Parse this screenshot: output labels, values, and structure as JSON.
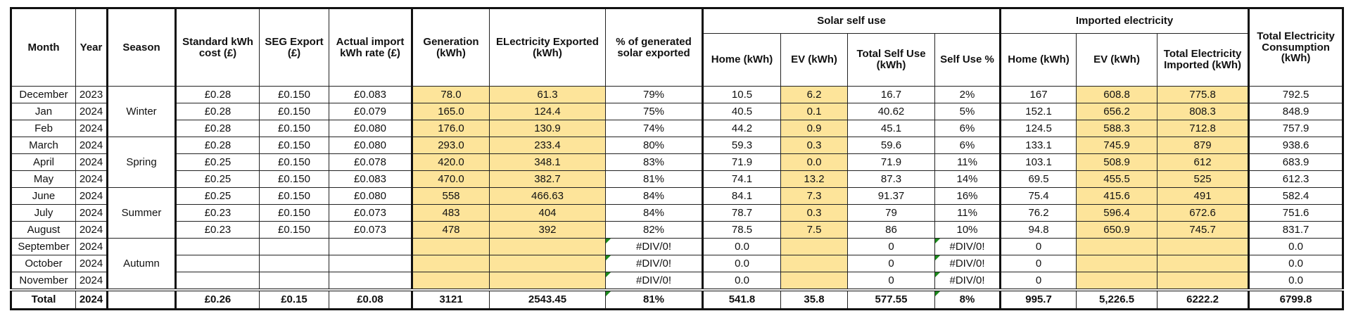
{
  "sheet": {
    "headers": {
      "month": "Month",
      "year": "Year",
      "season": "Season",
      "standard_cost": "Standard kWh cost (£)",
      "seg_export": "SEG Export (£)",
      "actual_import_rate": "Actual import kWh rate (£)",
      "generation": "Generation (kWh)",
      "exported": "ELectricity Exported (kWh)",
      "pct_exported": "% of generated solar exported",
      "solar_self_use_group": "Solar self use",
      "self_home": "Home (kWh)",
      "self_ev": "EV (kWh)",
      "self_total": "Total Self Use (kWh)",
      "self_pct": "Self Use %",
      "imported_group": "Imported electricity",
      "imp_home": "Home (kWh)",
      "imp_ev": "EV (kWh)",
      "imp_total": "Total Electricity Imported (kWh)",
      "total_consumption": "Total Electricity Consumption (kWh)"
    },
    "seasons": [
      "Winter",
      "Spring",
      "Summer",
      "Autumn"
    ],
    "rows": [
      {
        "month": "December",
        "year": "2023",
        "std": "£0.28",
        "seg": "£0.150",
        "rate": "£0.083",
        "gen": "78.0",
        "exp": "61.3",
        "pct": "79%",
        "s_home": "10.5",
        "s_ev": "6.2",
        "s_total": "16.7",
        "s_pct": "2%",
        "i_home": "167",
        "i_ev": "608.8",
        "i_total": "775.8",
        "total": "792.5"
      },
      {
        "month": "Jan",
        "year": "2024",
        "std": "£0.28",
        "seg": "£0.150",
        "rate": "£0.079",
        "gen": "165.0",
        "exp": "124.4",
        "pct": "75%",
        "s_home": "40.5",
        "s_ev": "0.1",
        "s_total": "40.62",
        "s_pct": "5%",
        "i_home": "152.1",
        "i_ev": "656.2",
        "i_total": "808.3",
        "total": "848.9"
      },
      {
        "month": "Feb",
        "year": "2024",
        "std": "£0.28",
        "seg": "£0.150",
        "rate": "£0.080",
        "gen": "176.0",
        "exp": "130.9",
        "pct": "74%",
        "s_home": "44.2",
        "s_ev": "0.9",
        "s_total": "45.1",
        "s_pct": "6%",
        "i_home": "124.5",
        "i_ev": "588.3",
        "i_total": "712.8",
        "total": "757.9"
      },
      {
        "month": "March",
        "year": "2024",
        "std": "£0.28",
        "seg": "£0.150",
        "rate": "£0.080",
        "gen": "293.0",
        "exp": "233.4",
        "pct": "80%",
        "s_home": "59.3",
        "s_ev": "0.3",
        "s_total": "59.6",
        "s_pct": "6%",
        "i_home": "133.1",
        "i_ev": "745.9",
        "i_total": "879",
        "total": "938.6"
      },
      {
        "month": "April",
        "year": "2024",
        "std": "£0.25",
        "seg": "£0.150",
        "rate": "£0.078",
        "gen": "420.0",
        "exp": "348.1",
        "pct": "83%",
        "s_home": "71.9",
        "s_ev": "0.0",
        "s_total": "71.9",
        "s_pct": "11%",
        "i_home": "103.1",
        "i_ev": "508.9",
        "i_total": "612",
        "total": "683.9"
      },
      {
        "month": "May",
        "year": "2024",
        "std": "£0.25",
        "seg": "£0.150",
        "rate": "£0.083",
        "gen": "470.0",
        "exp": "382.7",
        "pct": "81%",
        "s_home": "74.1",
        "s_ev": "13.2",
        "s_total": "87.3",
        "s_pct": "14%",
        "i_home": "69.5",
        "i_ev": "455.5",
        "i_total": "525",
        "total": "612.3"
      },
      {
        "month": "June",
        "year": "2024",
        "std": "£0.25",
        "seg": "£0.150",
        "rate": "£0.080",
        "gen": "558",
        "exp": "466.63",
        "pct": "84%",
        "s_home": "84.1",
        "s_ev": "7.3",
        "s_total": "91.37",
        "s_pct": "16%",
        "i_home": "75.4",
        "i_ev": "415.6",
        "i_total": "491",
        "total": "582.4"
      },
      {
        "month": "July",
        "year": "2024",
        "std": "£0.23",
        "seg": "£0.150",
        "rate": "£0.073",
        "gen": "483",
        "exp": "404",
        "pct": "84%",
        "s_home": "78.7",
        "s_ev": "0.3",
        "s_total": "79",
        "s_pct": "11%",
        "i_home": "76.2",
        "i_ev": "596.4",
        "i_total": "672.6",
        "total": "751.6"
      },
      {
        "month": "August",
        "year": "2024",
        "std": "£0.23",
        "seg": "£0.150",
        "rate": "£0.073",
        "gen": "478",
        "exp": "392",
        "pct": "82%",
        "s_home": "78.5",
        "s_ev": "7.5",
        "s_total": "86",
        "s_pct": "10%",
        "i_home": "94.8",
        "i_ev": "650.9",
        "i_total": "745.7",
        "total": "831.7"
      },
      {
        "month": "September",
        "year": "2024",
        "std": "",
        "seg": "",
        "rate": "",
        "gen": "",
        "exp": "",
        "pct": "#DIV/0!",
        "s_home": "0.0",
        "s_ev": "",
        "s_total": "0",
        "s_pct": "#DIV/0!",
        "i_home": "0",
        "i_ev": "",
        "i_total": "",
        "total": "0.0"
      },
      {
        "month": "October",
        "year": "2024",
        "std": "",
        "seg": "",
        "rate": "",
        "gen": "",
        "exp": "",
        "pct": "#DIV/0!",
        "s_home": "0.0",
        "s_ev": "",
        "s_total": "0",
        "s_pct": "#DIV/0!",
        "i_home": "0",
        "i_ev": "",
        "i_total": "",
        "total": "0.0"
      },
      {
        "month": "November",
        "year": "2024",
        "std": "",
        "seg": "",
        "rate": "",
        "gen": "",
        "exp": "",
        "pct": "#DIV/0!",
        "s_home": "0.0",
        "s_ev": "",
        "s_total": "0",
        "s_pct": "#DIV/0!",
        "i_home": "0",
        "i_ev": "",
        "i_total": "",
        "total": "0.0"
      }
    ],
    "total": {
      "label": "Total",
      "year": "2024",
      "season": "",
      "std": "£0.26",
      "seg": "£0.15",
      "rate": "£0.08",
      "gen": "3121",
      "exp": "2543.45",
      "pct": "81%",
      "s_home": "541.8",
      "s_ev": "35.8",
      "s_total": "577.55",
      "s_pct": "8%",
      "i_home": "995.7",
      "i_ev": "5,226.5",
      "i_total": "6222.2",
      "total": "6799.8"
    },
    "colors": {
      "highlight": "#fde49a",
      "error_flag": "#1c8a1c"
    }
  }
}
